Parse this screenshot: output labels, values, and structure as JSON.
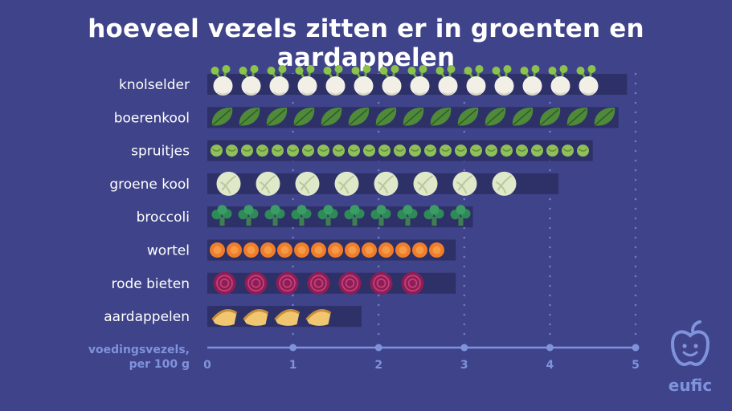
{
  "chart_data": {
    "type": "bar",
    "orientation": "horizontal",
    "title": "hoeveel vezels zitten er in groenten en aardappelen",
    "xlabel": "voedingsvezels,\nper 100 g",
    "xlim": [
      0,
      5
    ],
    "xticks": [
      "0",
      "1",
      "2",
      "3",
      "4",
      "5"
    ],
    "grid": true,
    "categories": [
      "knolselder",
      "boerenkool",
      "spruitjes",
      "groene kool",
      "broccoli",
      "wortel",
      "rode bieten",
      "aardappelen"
    ],
    "values": [
      4.9,
      4.8,
      4.5,
      4.1,
      3.1,
      2.9,
      2.9,
      1.8
    ],
    "series_icons": [
      "celeriac-icon",
      "kale-leaf-icon",
      "sprout-icon",
      "cabbage-icon",
      "broccoli-icon",
      "carrot-slice-icon",
      "beet-slice-icon",
      "potato-icon"
    ]
  },
  "colors": {
    "background": "#3f4389",
    "bar_track": "#2e3068",
    "axis": "#7f93dd",
    "text": "#ffffff"
  },
  "logo": {
    "text": "eufic",
    "icon": "apple-face-icon"
  }
}
